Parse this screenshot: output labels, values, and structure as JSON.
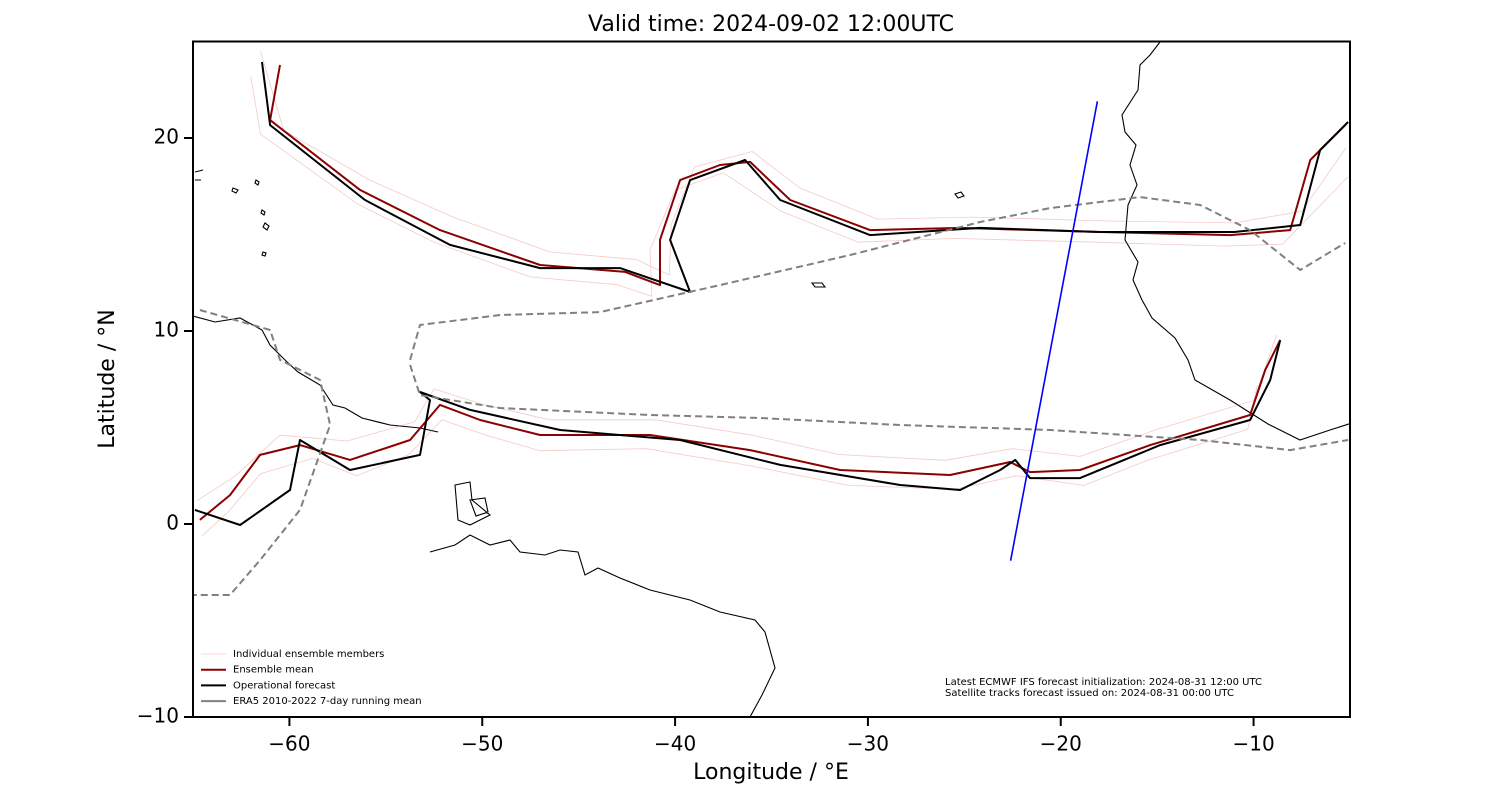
{
  "chart_data": {
    "type": "line",
    "title": "Valid time: 2024-09-02 12:00UTC",
    "xlabel": "Longitude / °E",
    "ylabel": "Latitude / °N",
    "xlim": [
      -65,
      -5
    ],
    "ylim": [
      -10,
      25
    ],
    "xticks": [
      {
        "value": -60,
        "label": "−60"
      },
      {
        "value": -50,
        "label": "−50"
      },
      {
        "value": -40,
        "label": "−40"
      },
      {
        "value": -30,
        "label": "−30"
      },
      {
        "value": -20,
        "label": "−20"
      },
      {
        "value": -10,
        "label": "−10"
      }
    ],
    "yticks": [
      {
        "value": -10,
        "label": "−10"
      },
      0,
      10,
      20
    ],
    "legend": "lower left",
    "series": [
      {
        "name": "Individual ensemble members",
        "color": "#e06666",
        "alpha": 0.35,
        "linewidth": 0.8,
        "linestyle": "solid",
        "x": [
          -61.5,
          -60.3,
          -55.8,
          -51.5,
          -46.5,
          -42,
          -40.3,
          -40.2,
          -39,
          -36,
          -33.5,
          -29.5,
          -24.5,
          -17.5,
          -11,
          -7.5,
          -5.2,
          null,
          -62,
          -61.5,
          -56.5,
          -52.5,
          -47.5,
          -43,
          -41.2,
          -41.3,
          -40,
          -37.5,
          -34.5,
          -30.5,
          -25.5,
          -18.2,
          -11.5,
          -8.5,
          -5.1,
          null,
          -64.8,
          -62.8,
          -60.5,
          -57,
          -53.5,
          -52.5,
          -50,
          -46.5,
          -41,
          -36,
          -31.5,
          -26,
          -22.5,
          -19,
          -15,
          -10,
          -8.8,
          null,
          -64.5,
          -63.2,
          -61.5,
          -58.8,
          -56.5,
          -53.8,
          -52.1,
          -49.8,
          -47,
          -41.5,
          -36,
          -31,
          -25.5,
          -22.3,
          -18.8,
          -15.5,
          -10.3,
          -9.8
        ],
        "values": [
          24.5,
          20.4,
          17.8,
          15.9,
          14.1,
          13.7,
          12.9,
          15.5,
          18.5,
          19.3,
          17.4,
          15.8,
          15.9,
          15.7,
          15.6,
          16.2,
          19.5,
          null,
          23.2,
          20.2,
          16.6,
          14.6,
          12.8,
          12.4,
          11.8,
          14.2,
          17.3,
          18.2,
          16.2,
          14.6,
          14.8,
          14.6,
          14.4,
          14.5,
          18.0,
          null,
          1.2,
          2.5,
          4.6,
          4.3,
          5.3,
          7.0,
          6.2,
          5.4,
          5.4,
          4.6,
          3.6,
          3.3,
          3.9,
          3.5,
          4.9,
          6.4,
          9.8,
          null,
          -0.6,
          0.6,
          2.6,
          3.4,
          2.5,
          3.6,
          5.4,
          4.6,
          3.8,
          3.9,
          3.0,
          2.0,
          1.8,
          2.5,
          2.0,
          3.3,
          4.9,
          7.2
        ]
      },
      {
        "name": "Ensemble mean",
        "color": "#8b0000",
        "alpha": 1,
        "linewidth": 2,
        "linestyle": "solid",
        "x": [
          -60.49,
          -61.0,
          -56.34,
          -52.19,
          -47.0,
          -42.59,
          -40.78,
          -40.78,
          -39.74,
          -37.67,
          -36.11,
          -34.03,
          -29.89,
          -25.22,
          -17.96,
          -11.21,
          -8.1,
          -7.06,
          -5.25,
          null,
          -64.64,
          -63.08,
          -61.52,
          -59.45,
          -56.86,
          -53.74,
          -52.19,
          -50.11,
          -47.0,
          -41.3,
          -36.11,
          -31.44,
          -25.74,
          -22.62,
          -21.59,
          -19.0,
          -15.36,
          -10.18,
          -9.4,
          -8.62
        ],
        "values": [
          23.78,
          20.93,
          17.31,
          15.23,
          13.42,
          13.06,
          12.38,
          14.72,
          17.82,
          18.6,
          18.76,
          16.79,
          15.23,
          15.34,
          15.13,
          14.97,
          15.23,
          18.86,
          20.67,
          null,
          0.21,
          1.5,
          3.58,
          4.09,
          3.32,
          4.35,
          6.17,
          5.39,
          4.61,
          4.61,
          3.83,
          2.8,
          2.54,
          3.21,
          2.69,
          2.8,
          4.09,
          5.65,
          7.98,
          9.53
        ]
      },
      {
        "name": "Operational forecast",
        "color": "#000000",
        "alpha": 1,
        "linewidth": 2,
        "linestyle": "solid",
        "x": [
          -61.42,
          -61.0,
          -56.08,
          -51.67,
          -47.0,
          -42.85,
          -39.22,
          -40.26,
          -39.22,
          -36.37,
          -34.55,
          -29.89,
          -24.18,
          -17.96,
          -11.0,
          -7.58,
          -6.55,
          -5.1,
          null,
          -64.9,
          -62.56,
          -59.97,
          -59.45,
          -56.86,
          -53.23,
          -52.71,
          -53.23,
          -50.63,
          -45.96,
          -39.74,
          -34.55,
          -28.33,
          -25.22,
          -23.14,
          -22.36,
          -21.59,
          -19.0,
          -14.85,
          -10.18,
          -9.14,
          -8.62
        ],
        "values": [
          23.94,
          20.67,
          16.79,
          14.46,
          13.26,
          13.26,
          12.02,
          14.72,
          17.82,
          18.86,
          16.79,
          14.97,
          15.34,
          15.13,
          15.13,
          15.49,
          19.38,
          20.83,
          null,
          0.73,
          -0.05,
          1.76,
          4.35,
          2.8,
          3.58,
          6.42,
          6.84,
          5.91,
          4.87,
          4.35,
          3.06,
          2.02,
          1.76,
          2.8,
          3.32,
          2.38,
          2.38,
          4.09,
          5.39,
          7.46,
          9.53
        ]
      },
      {
        "name": "ERA5 2010-2022 7-day running mean",
        "color": "#808080",
        "alpha": 1,
        "linewidth": 2,
        "linestyle": "dashed",
        "x": [
          -53.74,
          -53.23,
          -49.08,
          -43.89,
          -37.67,
          -30.92,
          -24.18,
          -20.55,
          -15.88,
          -12.77,
          -10.18,
          -7.58,
          -5.25,
          null,
          -53.74,
          -53.23,
          -49.08,
          -41.3,
          -35.6,
          -28.33,
          -20.55,
          -12.77,
          -8.1,
          -5.1,
          null,
          -64.64,
          -61.0,
          -60.49,
          -58.41,
          -57.89,
          -59.45,
          -61.52,
          -63.08,
          -65
        ],
        "values": [
          8.5,
          10.31,
          10.83,
          10.98,
          12.38,
          13.94,
          15.65,
          16.37,
          16.94,
          16.53,
          15.23,
          13.16,
          14.56,
          null,
          8.24,
          6.68,
          6.01,
          5.65,
          5.49,
          5.13,
          4.87,
          4.35,
          3.83,
          4.35,
          null,
          11.09,
          10.05,
          8.5,
          7.46,
          5.13,
          0.73,
          -1.87,
          -3.68,
          -3.68
        ]
      }
    ],
    "track": {
      "color": "#0000ff",
      "x": [
        -22.6,
        -18.1
      ],
      "values": [
        -1.9,
        21.9
      ]
    },
    "annotations": [
      "Latest ECMWF IFS forecast initialization: 2024-08-31 12:00 UTC",
      "Satellite tracks forecast issued on: 2024-08-31 00:00 UTC"
    ]
  }
}
